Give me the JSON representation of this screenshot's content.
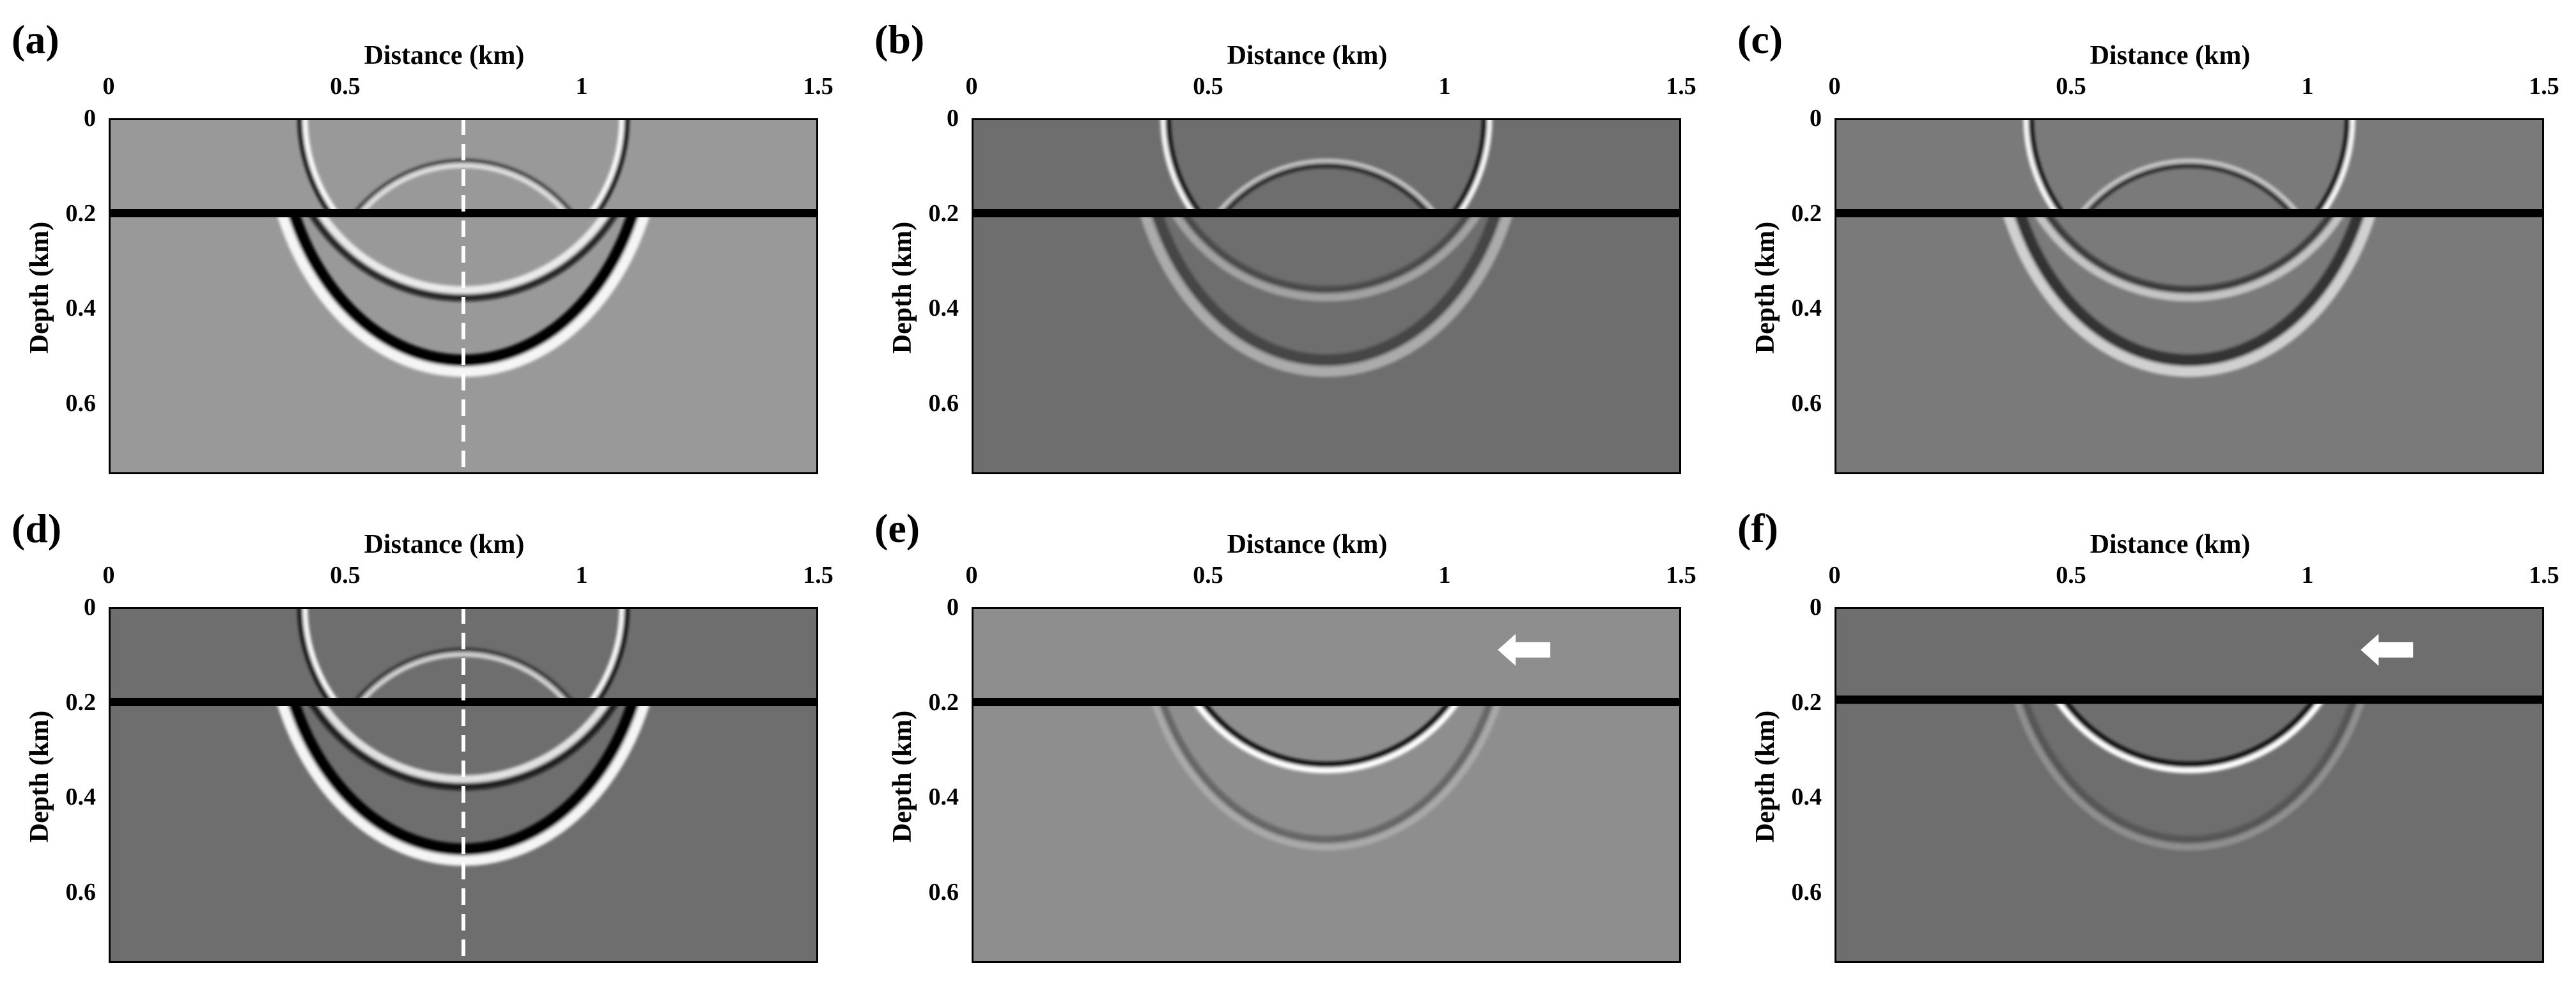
{
  "panels": [
    {
      "label": "(a)",
      "xlabel": "Distance (km)",
      "ylabel": "Depth (km)",
      "xticks": [
        "0",
        "0.5",
        "1",
        "1.5"
      ],
      "yticks": [
        "0",
        "0.2",
        "0.4",
        "0.6"
      ],
      "bg": "#999999",
      "interface_depth": 0.2,
      "dashed_x": 0.75,
      "arrow": false,
      "polarity": 1,
      "upper": true,
      "lower_amp": 1.0,
      "lower_only_top": false
    },
    {
      "label": "(b)",
      "xlabel": "Distance (km)",
      "ylabel": "Depth (km)",
      "xticks": [
        "0",
        "0.5",
        "1",
        "1.5"
      ],
      "yticks": [
        "0",
        "0.2",
        "0.4",
        "0.6"
      ],
      "bg": "#6e6e6e",
      "interface_depth": 0.2,
      "dashed_x": null,
      "arrow": false,
      "polarity": -1,
      "upper": true,
      "lower_amp": 0.45,
      "lower_only_top": false
    },
    {
      "label": "(c)",
      "xlabel": "Distance (km)",
      "ylabel": "Depth (km)",
      "xticks": [
        "0",
        "0.5",
        "1",
        "1.5"
      ],
      "yticks": [
        "0",
        "0.2",
        "0.4",
        "0.6"
      ],
      "bg": "#7a7a7a",
      "interface_depth": 0.2,
      "dashed_x": null,
      "arrow": false,
      "polarity": -1,
      "upper": true,
      "lower_amp": 0.7,
      "lower_only_top": false
    },
    {
      "label": "(d)",
      "xlabel": "Distance (km)",
      "ylabel": "Depth (km)",
      "xticks": [
        "0",
        "0.5",
        "1",
        "1.5"
      ],
      "yticks": [
        "0",
        "0.2",
        "0.4",
        "0.6"
      ],
      "bg": "#6e6e6e",
      "interface_depth": 0.2,
      "dashed_x": 0.75,
      "arrow": false,
      "polarity": 1,
      "upper": true,
      "lower_amp": 1.0,
      "lower_only_top": false
    },
    {
      "label": "(e)",
      "xlabel": "Distance (km)",
      "ylabel": "Depth (km)",
      "xticks": [
        "0",
        "0.5",
        "1",
        "1.5"
      ],
      "yticks": [
        "0",
        "0.2",
        "0.4",
        "0.6"
      ],
      "bg": "#8e8e8e",
      "interface_depth": 0.2,
      "dashed_x": null,
      "arrow": true,
      "polarity": -1,
      "upper": false,
      "lower_amp": 0.35,
      "lower_only_top": true
    },
    {
      "label": "(f)",
      "xlabel": "Distance (km)",
      "ylabel": "Depth (km)",
      "xticks": [
        "0",
        "0.5",
        "1",
        "1.5"
      ],
      "yticks": [
        "0",
        "0.2",
        "0.4",
        "0.6"
      ],
      "bg": "#6e6e6e",
      "interface_depth": 0.195,
      "dashed_x": null,
      "arrow": true,
      "polarity": -1,
      "upper": false,
      "lower_amp": 0.3,
      "lower_only_top": true
    }
  ],
  "axes": {
    "xlim": [
      0,
      1.5
    ],
    "ylim": [
      0,
      0.75
    ],
    "xtick_values": [
      0,
      0.5,
      1,
      1.5
    ],
    "ytick_values": [
      0,
      0.2,
      0.4,
      0.6
    ]
  }
}
